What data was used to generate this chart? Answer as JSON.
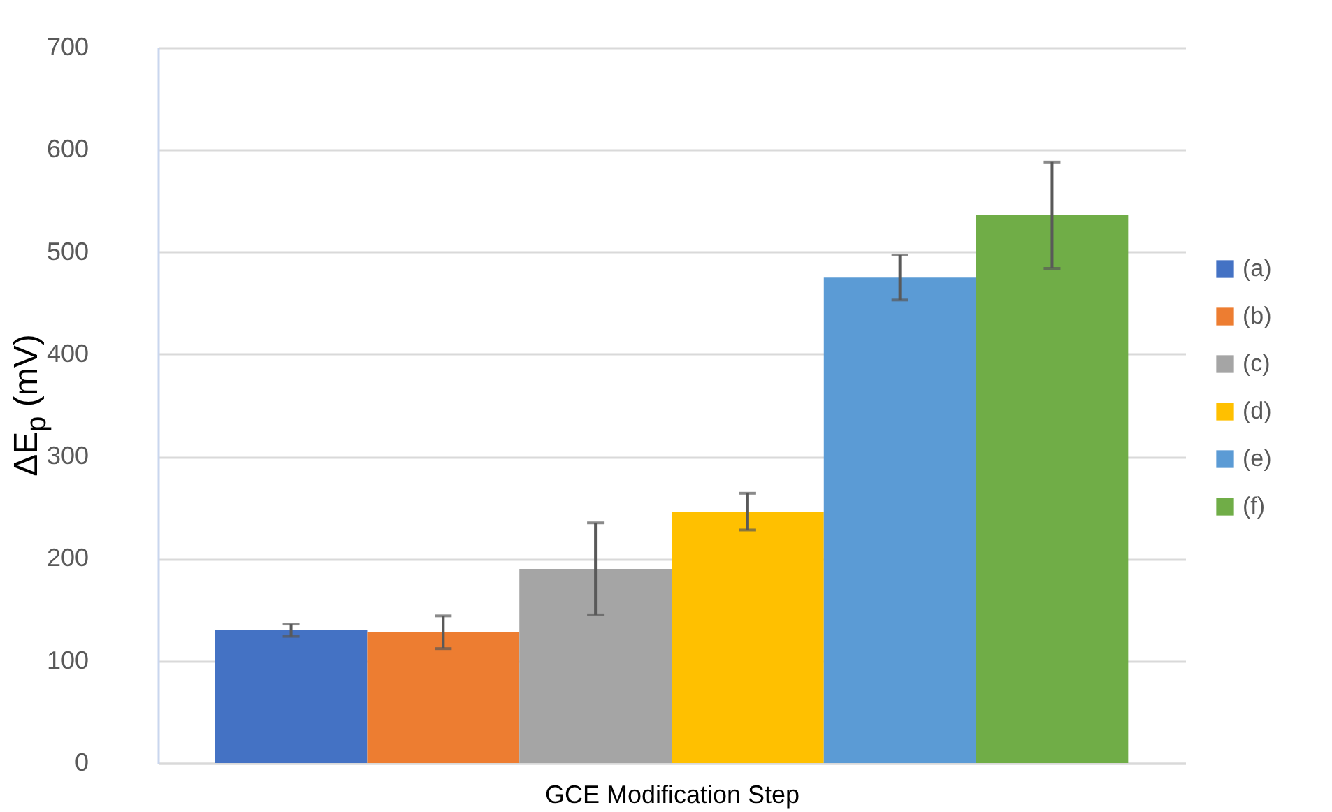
{
  "chart_data": {
    "type": "bar",
    "xlabel": "GCE Modification Step",
    "ylabel": "ΔE$_{p}$ (mV)",
    "categories": [
      null
    ],
    "series": [
      {
        "name": "(a)",
        "color": "#4472c4",
        "values": [
          130
        ],
        "errors": [
          6
        ]
      },
      {
        "name": "(b)",
        "color": "#ed7d31",
        "values": [
          128
        ],
        "errors": [
          16
        ]
      },
      {
        "name": "(c)",
        "color": "#a5a5a5",
        "values": [
          190
        ],
        "errors": [
          45
        ]
      },
      {
        "name": "(d)",
        "color": "#ffc000",
        "values": [
          246
        ],
        "errors": [
          18
        ]
      },
      {
        "name": "(e)",
        "color": "#5b9bd5",
        "values": [
          475
        ],
        "errors": [
          22
        ]
      },
      {
        "name": "(f)",
        "color": "#70ad47",
        "values": [
          536
        ],
        "errors": [
          52
        ]
      }
    ],
    "ylim": [
      0,
      700
    ],
    "yticks": [
      0,
      100,
      200,
      300,
      400,
      500,
      600,
      700
    ],
    "grid": "y",
    "legend": "right",
    "tick_labels": "y"
  }
}
